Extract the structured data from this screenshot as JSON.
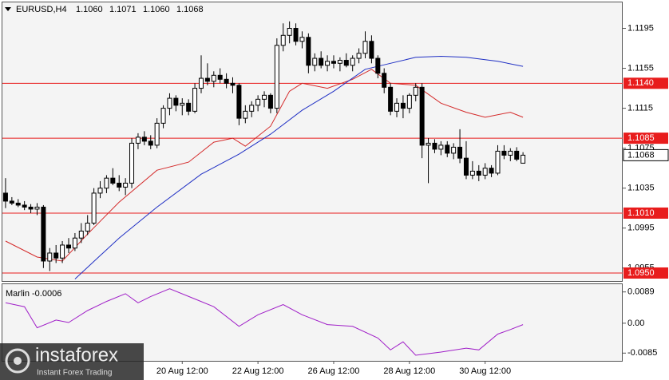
{
  "chart_data": [
    {
      "type": "candlestick",
      "title": "EURUSD,H4",
      "header_values": [
        "1.1060",
        "1.1071",
        "1.1060",
        "1.1068"
      ],
      "xlim": [
        -0.5,
        97.8
      ],
      "ylim": [
        1.0942,
        1.1221
      ],
      "yticks": [
        1.1195,
        1.1155,
        1.1115,
        1.1075,
        1.1035,
        1.0995,
        1.0955
      ],
      "open": [
        1.103,
        1.1022,
        1.102,
        1.1018,
        1.1016,
        1.1014,
        1.1016,
        1.0962,
        1.097,
        1.0965,
        1.0978,
        1.0975,
        1.0985,
        1.0992,
        1.1,
        1.103,
        1.1035,
        1.1045,
        1.104,
        1.1036,
        1.104,
        1.108,
        1.1086,
        1.1082,
        1.1078,
        1.11,
        1.1115,
        1.1125,
        1.1118,
        1.112,
        1.1112,
        1.1135,
        1.1145,
        1.1142,
        1.1148,
        1.1144,
        1.114,
        1.1138,
        1.1105,
        1.1112,
        1.1118,
        1.1124,
        1.1128,
        1.1115,
        1.1178,
        1.1188,
        1.1195,
        1.1182,
        1.1186,
        1.1158,
        1.1165,
        1.1158,
        1.1162,
        1.116,
        1.1163,
        1.1158,
        1.1165,
        1.117,
        1.1182,
        1.1165,
        1.115,
        1.1136,
        1.1112,
        1.112,
        1.1115,
        1.1128,
        1.1136,
        1.1078,
        1.108,
        1.1074,
        1.1078,
        1.107,
        1.1076,
        1.1065,
        1.1048,
        1.1052,
        1.1048,
        1.1055,
        1.105,
        1.1072,
        1.1068,
        1.1072,
        1.106
      ],
      "high": [
        1.1045,
        1.1026,
        1.1024,
        1.1022,
        1.1019,
        1.102,
        1.1018,
        1.0975,
        1.0978,
        1.0982,
        1.0985,
        1.099,
        1.1,
        1.1008,
        1.1035,
        1.1042,
        1.1048,
        1.1055,
        1.1048,
        1.1045,
        1.1085,
        1.109,
        1.1092,
        1.1088,
        1.1105,
        1.1118,
        1.113,
        1.1128,
        1.1125,
        1.1124,
        1.114,
        1.1168,
        1.116,
        1.1152,
        1.1155,
        1.115,
        1.1146,
        1.114,
        1.1118,
        1.1122,
        1.1128,
        1.1132,
        1.113,
        1.1185,
        1.12,
        1.1202,
        1.12,
        1.1192,
        1.119,
        1.117,
        1.1172,
        1.1168,
        1.1168,
        1.1166,
        1.117,
        1.1168,
        1.1175,
        1.1192,
        1.1188,
        1.1168,
        1.1155,
        1.114,
        1.1125,
        1.1128,
        1.113,
        1.114,
        1.114,
        1.1085,
        1.1084,
        1.1082,
        1.1082,
        1.108,
        1.1094,
        1.1082,
        1.1062,
        1.1058,
        1.106,
        1.1058,
        1.1078,
        1.1078,
        1.1075,
        1.1076,
        1.1071
      ],
      "low": [
        1.1015,
        1.1018,
        1.1016,
        1.1013,
        1.101,
        1.1008,
        1.0955,
        1.0952,
        1.096,
        1.096,
        1.097,
        1.0972,
        1.098,
        1.0988,
        1.0998,
        1.1025,
        1.103,
        1.1038,
        1.1032,
        1.1028,
        1.1035,
        1.1074,
        1.1078,
        1.1074,
        1.1075,
        1.1095,
        1.1108,
        1.1112,
        1.1108,
        1.1108,
        1.111,
        1.113,
        1.1138,
        1.1136,
        1.114,
        1.1135,
        1.113,
        1.1098,
        1.11,
        1.1106,
        1.1112,
        1.1116,
        1.111,
        1.111,
        1.1172,
        1.118,
        1.1178,
        1.1175,
        1.115,
        1.1152,
        1.1155,
        1.1152,
        1.1155,
        1.1152,
        1.1156,
        1.1152,
        1.116,
        1.1165,
        1.116,
        1.1145,
        1.113,
        1.1108,
        1.1106,
        1.1105,
        1.111,
        1.1122,
        1.1065,
        1.104,
        1.107,
        1.1068,
        1.1066,
        1.1064,
        1.106,
        1.1044,
        1.1044,
        1.1042,
        1.1044,
        1.1046,
        1.1048,
        1.1064,
        1.1062,
        1.1062,
        1.106
      ],
      "close": [
        1.1022,
        1.102,
        1.1018,
        1.1016,
        1.1014,
        1.1016,
        1.0962,
        1.097,
        1.0965,
        1.0978,
        1.0975,
        1.0985,
        1.0992,
        1.1,
        1.103,
        1.1035,
        1.1045,
        1.104,
        1.1036,
        1.104,
        1.108,
        1.1086,
        1.1082,
        1.1078,
        1.11,
        1.1115,
        1.1125,
        1.1118,
        1.112,
        1.1112,
        1.1135,
        1.1145,
        1.1142,
        1.1148,
        1.1144,
        1.114,
        1.1138,
        1.1105,
        1.1112,
        1.1118,
        1.1124,
        1.1128,
        1.1115,
        1.1178,
        1.1188,
        1.1195,
        1.1182,
        1.1186,
        1.1158,
        1.1165,
        1.1158,
        1.1162,
        1.116,
        1.1163,
        1.1158,
        1.1165,
        1.117,
        1.1182,
        1.1165,
        1.115,
        1.1136,
        1.1112,
        1.112,
        1.1115,
        1.1128,
        1.1136,
        1.1078,
        1.108,
        1.1074,
        1.1078,
        1.107,
        1.1076,
        1.1065,
        1.1048,
        1.1052,
        1.1048,
        1.1055,
        1.105,
        1.1072,
        1.1068,
        1.1072,
        1.1064,
        1.1068
      ],
      "lines": [
        {
          "color": "#d42a2a",
          "x": [
            0,
            5,
            9,
            13,
            18,
            24,
            29,
            33,
            36,
            38,
            42,
            45,
            47,
            51,
            55,
            58,
            61,
            65,
            69,
            73,
            76,
            80,
            82
          ],
          "values": [
            1.0982,
            1.0966,
            1.0962,
            1.0989,
            1.1021,
            1.1053,
            1.1061,
            1.1081,
            1.1085,
            1.1077,
            1.1097,
            1.1132,
            1.114,
            1.1135,
            1.1144,
            1.1154,
            1.114,
            1.1138,
            1.112,
            1.1111,
            1.1106,
            1.1111,
            1.1106
          ]
        },
        {
          "color": "#1f2fc4",
          "x": [
            11,
            18,
            24,
            31,
            37,
            42,
            47,
            52,
            57,
            61,
            65,
            69,
            73,
            78,
            82
          ],
          "values": [
            1.0944,
            1.0985,
            1.1016,
            1.1049,
            1.1069,
            1.1089,
            1.1113,
            1.1132,
            1.1154,
            1.116,
            1.1166,
            1.1167,
            1.1166,
            1.1162,
            1.1157
          ]
        }
      ],
      "hlines": [
        {
          "value": 1.114,
          "label": "1.1140"
        },
        {
          "value": 1.1085,
          "label": "1.1085"
        },
        {
          "value": 1.101,
          "label": "1.1010"
        },
        {
          "value": 1.095,
          "label": "1.0950"
        }
      ],
      "hline_color": "#e81c1c",
      "current_price": {
        "value": 1.1068,
        "label": "1.1068"
      }
    },
    {
      "type": "line",
      "title": "Marlin -0.0006",
      "color": "#a01fc8",
      "xlim": [
        -0.5,
        97.8
      ],
      "ylim": [
        -0.0107,
        0.0111
      ],
      "yticks": [
        0.0089,
        {
          "value": 0,
          "label": "0.00"
        },
        -0.0085
      ],
      "x": [
        0,
        3,
        5,
        8,
        10,
        13,
        16,
        19,
        21,
        23,
        26,
        30,
        33,
        37,
        40,
        44,
        47,
        51,
        55,
        59,
        61,
        63,
        65,
        69,
        73,
        75,
        78,
        80,
        82
      ],
      "values": [
        0.0058,
        0.0047,
        -0.0013,
        0.0009,
        0.0002,
        0.0036,
        0.0062,
        0.0084,
        0.0058,
        0.0076,
        0.0098,
        0.0069,
        0.0047,
        -0.0009,
        0.0024,
        0.0053,
        0.0024,
        -0.0004,
        -0.0009,
        -0.0042,
        -0.0076,
        -0.0053,
        -0.0091,
        -0.0082,
        -0.0071,
        -0.0076,
        -0.0031,
        -0.0018,
        -0.0004
      ],
      "xticks": [
        {
          "value": 28,
          "label": "20 Aug 12:00"
        },
        {
          "value": 40,
          "label": "22 Aug 12:00"
        },
        {
          "value": 52,
          "label": "26 Aug 12:00"
        },
        {
          "value": 64,
          "label": "28 Aug 12:00"
        },
        {
          "value": 76,
          "label": "30 Aug 12:00"
        }
      ]
    }
  ],
  "watermark": {
    "brand": "instaforex",
    "tagline": "Instant Forex Trading"
  }
}
